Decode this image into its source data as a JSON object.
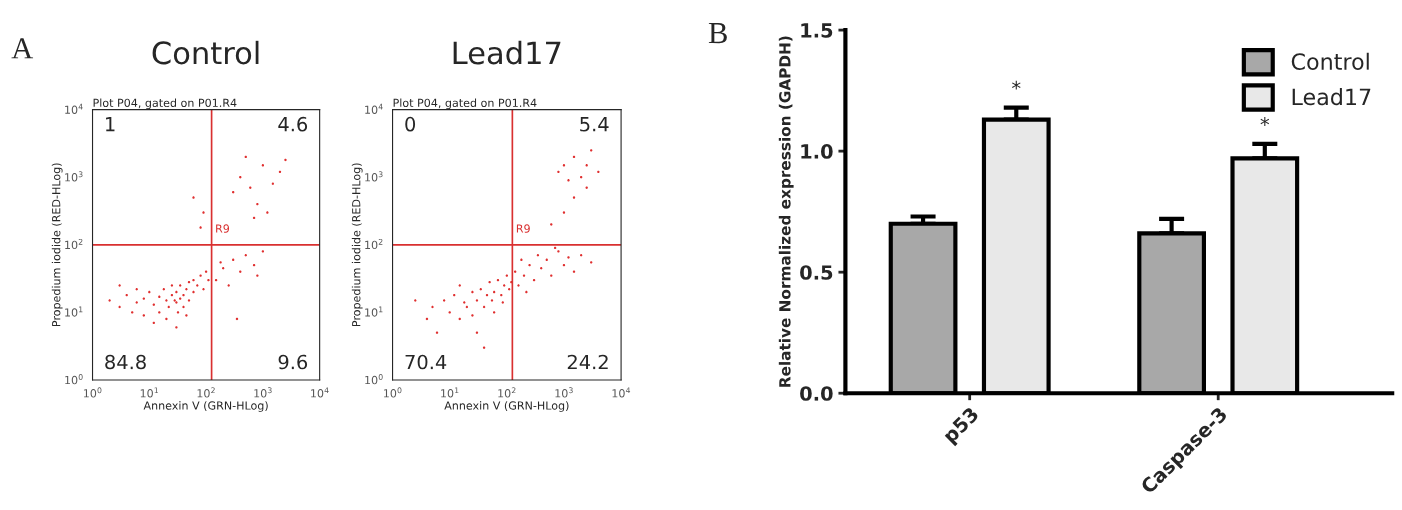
{
  "chart_data": [
    {
      "type": "scatter",
      "title": "Control",
      "subtitle": "Plot P04, gated on P01.R4",
      "xlabel": "Annexin V (GRN-HLog)",
      "ylabel": "Propedium iodide (RED-HLog)",
      "log": "xy",
      "marker": "circle",
      "grid": false,
      "xlim": [
        1,
        10000
      ],
      "ylim": [
        1,
        10000
      ],
      "xticks": [
        {
          "value": 1,
          "label": "10$^{0}$"
        },
        {
          "value": 10,
          "label": "10$^{1}$"
        },
        {
          "value": 100,
          "label": "10$^{2}$"
        },
        {
          "value": 1000,
          "label": "10$^{3}$"
        },
        {
          "value": 10000,
          "label": "10$^{4}$"
        }
      ],
      "yticks": [
        {
          "value": 1,
          "label": "10$^{0}$"
        },
        {
          "value": 10,
          "label": "10$^{1}$"
        },
        {
          "value": 100,
          "label": "10$^{2}$"
        },
        {
          "value": 1000,
          "label": "10$^{3}$"
        },
        {
          "value": 10000,
          "label": "10$^{4}$"
        }
      ],
      "ref_lines": [
        {
          "axis": "x",
          "value": 125,
          "color": "#d93030"
        },
        {
          "axis": "y",
          "value": 100,
          "color": "#d93030"
        }
      ],
      "annotations": [
        "A",
        "1",
        "4.6",
        "84.8",
        "9.6",
        "R9"
      ],
      "series": [
        {
          "color": "#e03030",
          "x": [
            2,
            3,
            4,
            5,
            6,
            8,
            8,
            10,
            12,
            15,
            15,
            18,
            20,
            22,
            25,
            25,
            28,
            30,
            30,
            32,
            35,
            35,
            40,
            40,
            45,
            50,
            50,
            60,
            60,
            70,
            80,
            90,
            100,
            110,
            12,
            20,
            30,
            45,
            3,
            6,
            150,
            200,
            250,
            300,
            400,
            500,
            700,
            800,
            1000,
            350,
            180,
            300,
            400,
            600,
            800,
            1000,
            1500,
            2000,
            1200,
            500,
            2500,
            700,
            60,
            80,
            90
          ],
          "values": [
            15,
            12,
            18,
            10,
            14,
            16,
            9,
            20,
            13,
            17,
            10,
            22,
            15,
            12,
            18,
            25,
            15,
            14,
            20,
            10,
            16,
            25,
            18,
            12,
            22,
            28,
            15,
            20,
            30,
            25,
            35,
            22,
            40,
            30,
            7,
            8,
            6,
            9,
            25,
            22,
            30,
            45,
            25,
            60,
            40,
            70,
            50,
            35,
            80,
            8,
            55,
            600,
            1000,
            700,
            400,
            1500,
            800,
            1200,
            300,
            2000,
            1800,
            250,
            500,
            180,
            300
          ]
        }
      ]
    },
    {
      "type": "scatter",
      "title": "Lead17",
      "subtitle": "Plot P04, gated on P01.R4",
      "xlabel": "Annexin V (GRN-HLog)",
      "ylabel": "Propedium iodide (RED-HLog)",
      "log": "xy",
      "marker": "circle",
      "grid": false,
      "xlim": [
        1,
        10000
      ],
      "ylim": [
        1,
        10000
      ],
      "xticks": [
        {
          "value": 1,
          "label": "10$^{0}$"
        },
        {
          "value": 10,
          "label": "10$^{1}$"
        },
        {
          "value": 100,
          "label": "10$^{2}$"
        },
        {
          "value": 1000,
          "label": "10$^{3}$"
        },
        {
          "value": 10000,
          "label": "10$^{4}$"
        }
      ],
      "yticks": [
        {
          "value": 1,
          "label": "10$^{0}$"
        },
        {
          "value": 10,
          "label": "10$^{1}$"
        },
        {
          "value": 100,
          "label": "10$^{2}$"
        },
        {
          "value": 1000,
          "label": "10$^{3}$"
        },
        {
          "value": 10000,
          "label": "10$^{4}$"
        }
      ],
      "ref_lines": [
        {
          "axis": "x",
          "value": 125,
          "color": "#d93030"
        },
        {
          "axis": "y",
          "value": 100,
          "color": "#d93030"
        }
      ],
      "annotations": [
        "0",
        "5.4",
        "70.4",
        "24.2",
        "R9"
      ],
      "series": [
        {
          "color": "#e03030",
          "x": [
            2.5,
            4,
            5,
            6,
            8,
            10,
            12,
            15,
            18,
            20,
            25,
            25,
            30,
            35,
            40,
            45,
            50,
            55,
            60,
            70,
            80,
            90,
            100,
            110,
            30,
            40,
            60,
            15,
            85,
            120,
            140,
            160,
            200,
            250,
            300,
            350,
            400,
            500,
            600,
            800,
            1000,
            1200,
            1500,
            2000,
            3000,
            180,
            220,
            700,
            800,
            1000,
            1200,
            1500,
            2000,
            2500,
            3000,
            4000,
            1500,
            1000,
            600,
            2500
          ],
          "values": [
            15,
            8,
            12,
            5,
            15,
            10,
            18,
            8,
            14,
            12,
            20,
            9,
            15,
            22,
            12,
            18,
            28,
            15,
            20,
            30,
            18,
            25,
            35,
            22,
            5,
            3,
            10,
            25,
            14,
            28,
            40,
            25,
            35,
            50,
            30,
            70,
            45,
            60,
            35,
            80,
            50,
            65,
            40,
            70,
            55,
            60,
            20,
            90,
            1200,
            1500,
            900,
            2000,
            1000,
            1500,
            2500,
            1200,
            500,
            300,
            200,
            700
          ]
        }
      ]
    },
    {
      "type": "bar",
      "ylabel": "Relative Normalized expression (GAPDH)",
      "categories": [
        "p53",
        "Caspase-3"
      ],
      "legend": "top right",
      "ylim": [
        0,
        1.5
      ],
      "yticks": [
        {
          "value": 0,
          "label": "0.0"
        },
        {
          "value": 0.5,
          "label": "0.5"
        },
        {
          "value": 1,
          "label": "1.0"
        },
        {
          "value": 1.5,
          "label": "1.5"
        }
      ],
      "annotations": [
        "B",
        "*",
        "*"
      ],
      "series": [
        {
          "name": "Control",
          "color": "#a8a8a8",
          "values": [
            0.7,
            0.66
          ],
          "errors": [
            [
              0.7,
              0.73
            ],
            [
              0.66,
              0.72
            ]
          ]
        },
        {
          "name": "Lead17",
          "color": "#e8e8e8",
          "values": [
            1.13,
            0.97
          ],
          "errors": [
            [
              1.13,
              1.18
            ],
            [
              0.97,
              1.03
            ]
          ]
        }
      ]
    }
  ]
}
